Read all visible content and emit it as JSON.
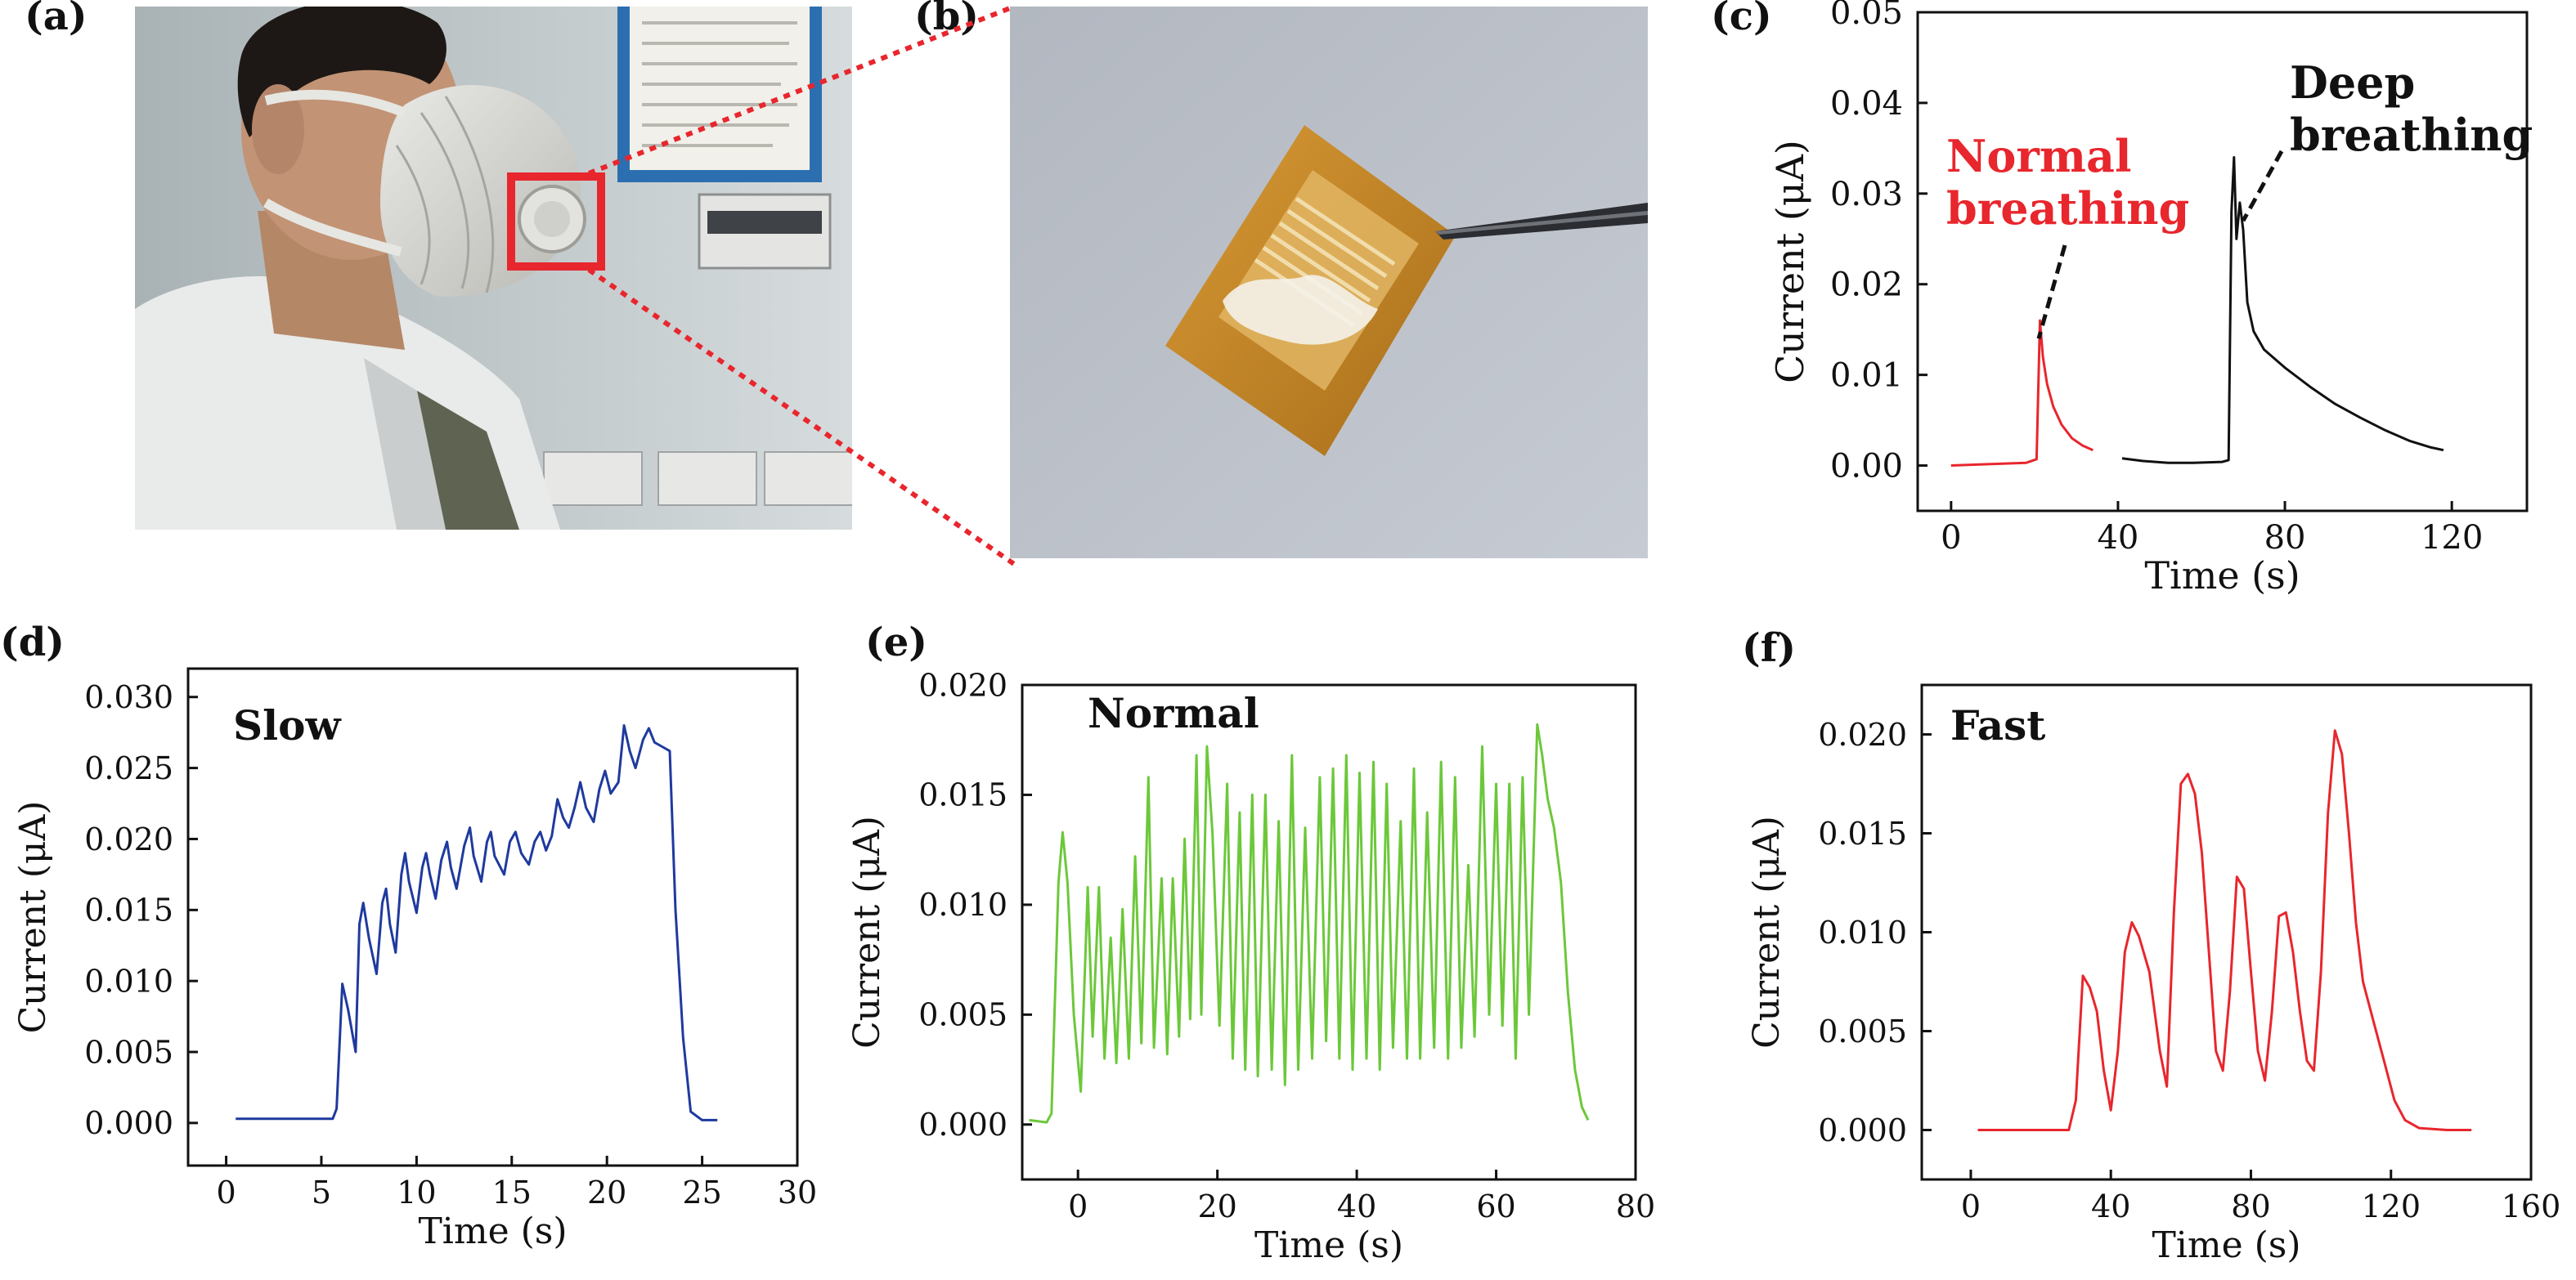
{
  "panel_labels": {
    "a": "(a)",
    "b": "(b)",
    "c": "(c)",
    "d": "(d)",
    "e": "(e)",
    "f": "(f)"
  },
  "photos": {
    "a": {
      "subject": "person wearing face mask with sensor on valve",
      "highlight_color": "#e8262d"
    },
    "b": {
      "subject": "sensor film held by tweezers",
      "film_color": "#c98a2a"
    }
  },
  "colors": {
    "red": "#e8262d",
    "black": "#111111",
    "blue": "#1f3a9e",
    "green": "#6cc83a",
    "callout": "#e8262d"
  },
  "chart_data": [
    {
      "id": "c",
      "type": "line",
      "xlabel": "Time (s)",
      "ylabel": "Current (μA)",
      "xlim": [
        -8,
        138
      ],
      "ylim": [
        -0.005,
        0.05
      ],
      "xticks": [
        0,
        40,
        80,
        120
      ],
      "yticks": [
        0.0,
        0.01,
        0.02,
        0.03,
        0.04,
        0.05
      ],
      "ytick_labels": [
        "0.00",
        "0.01",
        "0.02",
        "0.03",
        "0.04",
        "0.05"
      ],
      "annotations": [
        {
          "text": [
            "Normal",
            "breathing"
          ],
          "color": "#e8262d",
          "point": [
            21,
            0.014
          ]
        },
        {
          "text": [
            "Deep",
            "breathing"
          ],
          "color": "#111111",
          "point": [
            70,
            0.027
          ]
        }
      ],
      "series": [
        {
          "color": "#e8262d",
          "points": [
            [
              0,
              0.0
            ],
            [
              18,
              0.0003
            ],
            [
              20.5,
              0.0007
            ],
            [
              21.3,
              0.016
            ],
            [
              22,
              0.012
            ],
            [
              23,
              0.009
            ],
            [
              24.5,
              0.0065
            ],
            [
              26.5,
              0.0045
            ],
            [
              29,
              0.003
            ],
            [
              31.5,
              0.0022
            ],
            [
              34,
              0.0017
            ]
          ]
        },
        {
          "color": "#111111",
          "points": [
            [
              41,
              0.0008
            ],
            [
              46,
              0.0005
            ],
            [
              52,
              0.0003
            ],
            [
              58,
              0.0003
            ],
            [
              65,
              0.0004
            ],
            [
              66.5,
              0.0006
            ],
            [
              67.2,
              0.028
            ],
            [
              67.8,
              0.034
            ],
            [
              68.4,
              0.025
            ],
            [
              69.2,
              0.029
            ],
            [
              70,
              0.026
            ],
            [
              71,
              0.018
            ],
            [
              72.5,
              0.0148
            ],
            [
              75,
              0.0128
            ],
            [
              80,
              0.0108
            ],
            [
              86,
              0.0087
            ],
            [
              92,
              0.0068
            ],
            [
              98,
              0.0053
            ],
            [
              104,
              0.0039
            ],
            [
              110,
              0.0027
            ],
            [
              115,
              0.002
            ],
            [
              118,
              0.0017
            ]
          ]
        }
      ]
    },
    {
      "id": "d",
      "type": "line",
      "title": "Slow",
      "xlabel": "Time (s)",
      "ylabel": "Current (μA)",
      "xlim": [
        -2,
        30
      ],
      "ylim": [
        -0.003,
        0.032
      ],
      "xticks": [
        0,
        5,
        10,
        15,
        20,
        25,
        30
      ],
      "yticks": [
        0.0,
        0.005,
        0.01,
        0.015,
        0.02,
        0.025,
        0.03
      ],
      "ytick_labels": [
        "0.000",
        "0.005",
        "0.010",
        "0.015",
        "0.020",
        "0.025",
        "0.030"
      ],
      "series": [
        {
          "color": "#1f3a9e",
          "points": [
            [
              0.5,
              0.0003
            ],
            [
              5.6,
              0.0003
            ],
            [
              5.8,
              0.001
            ],
            [
              6.1,
              0.0098
            ],
            [
              6.4,
              0.008
            ],
            [
              6.8,
              0.005
            ],
            [
              7.0,
              0.014
            ],
            [
              7.2,
              0.0155
            ],
            [
              7.5,
              0.013
            ],
            [
              7.9,
              0.0105
            ],
            [
              8.2,
              0.0155
            ],
            [
              8.4,
              0.0165
            ],
            [
              8.6,
              0.014
            ],
            [
              8.9,
              0.012
            ],
            [
              9.2,
              0.0175
            ],
            [
              9.4,
              0.019
            ],
            [
              9.6,
              0.017
            ],
            [
              10.0,
              0.0148
            ],
            [
              10.3,
              0.018
            ],
            [
              10.5,
              0.019
            ],
            [
              10.7,
              0.0175
            ],
            [
              11.0,
              0.0158
            ],
            [
              11.3,
              0.0185
            ],
            [
              11.6,
              0.0198
            ],
            [
              11.8,
              0.018
            ],
            [
              12.1,
              0.0165
            ],
            [
              12.5,
              0.0195
            ],
            [
              12.8,
              0.0208
            ],
            [
              13.0,
              0.0188
            ],
            [
              13.4,
              0.017
            ],
            [
              13.7,
              0.0198
            ],
            [
              13.9,
              0.0205
            ],
            [
              14.1,
              0.0188
            ],
            [
              14.6,
              0.0175
            ],
            [
              14.9,
              0.0198
            ],
            [
              15.2,
              0.0205
            ],
            [
              15.5,
              0.019
            ],
            [
              15.9,
              0.0182
            ],
            [
              16.2,
              0.0198
            ],
            [
              16.5,
              0.0205
            ],
            [
              16.8,
              0.0192
            ],
            [
              17.1,
              0.0202
            ],
            [
              17.4,
              0.0228
            ],
            [
              17.7,
              0.0215
            ],
            [
              18.0,
              0.0208
            ],
            [
              18.3,
              0.0222
            ],
            [
              18.6,
              0.024
            ],
            [
              18.9,
              0.0222
            ],
            [
              19.3,
              0.0212
            ],
            [
              19.6,
              0.0235
            ],
            [
              19.9,
              0.0248
            ],
            [
              20.2,
              0.0232
            ],
            [
              20.6,
              0.024
            ],
            [
              20.9,
              0.028
            ],
            [
              21.2,
              0.0262
            ],
            [
              21.5,
              0.025
            ],
            [
              21.9,
              0.027
            ],
            [
              22.2,
              0.0278
            ],
            [
              22.5,
              0.0268
            ],
            [
              22.9,
              0.0265
            ],
            [
              23.3,
              0.0262
            ],
            [
              23.6,
              0.015
            ],
            [
              24.0,
              0.006
            ],
            [
              24.4,
              0.0008
            ],
            [
              25.0,
              0.0002
            ],
            [
              25.8,
              0.0002
            ]
          ]
        }
      ]
    },
    {
      "id": "e",
      "type": "line",
      "title": "Normal",
      "xlabel": "Time (s)",
      "ylabel": "Current (μA)",
      "xlim": [
        -8,
        80
      ],
      "ylim": [
        -0.0025,
        0.02
      ],
      "xticks": [
        0,
        20,
        40,
        60,
        80
      ],
      "yticks": [
        0.0,
        0.005,
        0.01,
        0.015,
        0.02
      ],
      "ytick_labels": [
        "0.000",
        "0.005",
        "0.010",
        "0.015",
        "0.020"
      ],
      "series": [
        {
          "color": "#6cc83a",
          "points": [
            [
              -7,
              0.0002
            ],
            [
              -4.5,
              0.0001
            ],
            [
              -3.8,
              0.0005
            ],
            [
              -2.8,
              0.011
            ],
            [
              -2.2,
              0.0133
            ],
            [
              -1.5,
              0.011
            ],
            [
              -0.6,
              0.005
            ],
            [
              0.4,
              0.0015
            ],
            [
              1.4,
              0.0108
            ],
            [
              2.1,
              0.004
            ],
            [
              3.0,
              0.0108
            ],
            [
              3.8,
              0.003
            ],
            [
              4.7,
              0.0085
            ],
            [
              5.5,
              0.0028
            ],
            [
              6.4,
              0.0098
            ],
            [
              7.3,
              0.003
            ],
            [
              8.2,
              0.0122
            ],
            [
              9.1,
              0.0037
            ],
            [
              10.1,
              0.0158
            ],
            [
              10.9,
              0.0035
            ],
            [
              12.0,
              0.0112
            ],
            [
              12.8,
              0.0032
            ],
            [
              13.6,
              0.0112
            ],
            [
              14.5,
              0.004
            ],
            [
              15.3,
              0.013
            ],
            [
              16.1,
              0.0048
            ],
            [
              17.0,
              0.0168
            ],
            [
              17.7,
              0.005
            ],
            [
              18.5,
              0.0172
            ],
            [
              19.3,
              0.0132
            ],
            [
              20.3,
              0.0045
            ],
            [
              21.4,
              0.0155
            ],
            [
              22.2,
              0.003
            ],
            [
              23.2,
              0.0142
            ],
            [
              24.0,
              0.0025
            ],
            [
              25.0,
              0.015
            ],
            [
              25.8,
              0.0022
            ],
            [
              26.9,
              0.015
            ],
            [
              27.8,
              0.0025
            ],
            [
              28.8,
              0.0138
            ],
            [
              29.7,
              0.0018
            ],
            [
              30.7,
              0.0168
            ],
            [
              31.6,
              0.0025
            ],
            [
              32.6,
              0.0135
            ],
            [
              33.6,
              0.003
            ],
            [
              34.7,
              0.0158
            ],
            [
              35.6,
              0.0038
            ],
            [
              36.6,
              0.0162
            ],
            [
              37.5,
              0.003
            ],
            [
              38.5,
              0.0168
            ],
            [
              39.4,
              0.0025
            ],
            [
              40.4,
              0.016
            ],
            [
              41.4,
              0.003
            ],
            [
              42.4,
              0.0165
            ],
            [
              43.3,
              0.0025
            ],
            [
              44.3,
              0.0155
            ],
            [
              45.2,
              0.0035
            ],
            [
              46.3,
              0.0138
            ],
            [
              47.2,
              0.003
            ],
            [
              48.2,
              0.0162
            ],
            [
              49.1,
              0.003
            ],
            [
              50.1,
              0.0142
            ],
            [
              51.1,
              0.0035
            ],
            [
              52.1,
              0.0165
            ],
            [
              53.1,
              0.003
            ],
            [
              54.1,
              0.0158
            ],
            [
              55.0,
              0.0035
            ],
            [
              56.0,
              0.0118
            ],
            [
              56.9,
              0.004
            ],
            [
              58.0,
              0.0172
            ],
            [
              59.0,
              0.005
            ],
            [
              60.0,
              0.0155
            ],
            [
              60.9,
              0.0045
            ],
            [
              61.9,
              0.0155
            ],
            [
              62.8,
              0.003
            ],
            [
              63.8,
              0.0158
            ],
            [
              64.7,
              0.005
            ],
            [
              65.9,
              0.0182
            ],
            [
              66.6,
              0.0168
            ],
            [
              67.4,
              0.0148
            ],
            [
              68.3,
              0.0135
            ],
            [
              69.3,
              0.011
            ],
            [
              70.3,
              0.006
            ],
            [
              71.3,
              0.0025
            ],
            [
              72.3,
              0.0008
            ],
            [
              73.2,
              0.0002
            ]
          ]
        }
      ]
    },
    {
      "id": "f",
      "type": "line",
      "title": "Fast",
      "xlabel": "Time (s)",
      "ylabel": "Current (μA)",
      "xlim": [
        -14,
        160
      ],
      "ylim": [
        -0.0025,
        0.0225
      ],
      "xticks": [
        0,
        40,
        80,
        120,
        160
      ],
      "yticks": [
        0.0,
        0.005,
        0.01,
        0.015,
        0.02
      ],
      "ytick_labels": [
        "0.000",
        "0.005",
        "0.010",
        "0.015",
        "0.020"
      ],
      "series": [
        {
          "color": "#e8262d",
          "points": [
            [
              2,
              0.0
            ],
            [
              28,
              0.0
            ],
            [
              30,
              0.0015
            ],
            [
              32,
              0.0078
            ],
            [
              34,
              0.0072
            ],
            [
              36,
              0.006
            ],
            [
              38,
              0.003
            ],
            [
              40,
              0.001
            ],
            [
              42,
              0.004
            ],
            [
              44,
              0.009
            ],
            [
              46,
              0.0105
            ],
            [
              48,
              0.0098
            ],
            [
              51,
              0.008
            ],
            [
              54,
              0.004
            ],
            [
              56,
              0.0022
            ],
            [
              58,
              0.011
            ],
            [
              60,
              0.0175
            ],
            [
              62,
              0.018
            ],
            [
              64,
              0.017
            ],
            [
              66,
              0.014
            ],
            [
              68,
              0.009
            ],
            [
              70,
              0.004
            ],
            [
              72,
              0.003
            ],
            [
              74,
              0.007
            ],
            [
              76,
              0.0128
            ],
            [
              78,
              0.0122
            ],
            [
              80,
              0.008
            ],
            [
              82,
              0.004
            ],
            [
              84,
              0.0025
            ],
            [
              86,
              0.006
            ],
            [
              88,
              0.0108
            ],
            [
              90,
              0.011
            ],
            [
              92,
              0.009
            ],
            [
              94,
              0.006
            ],
            [
              96,
              0.0035
            ],
            [
              98,
              0.003
            ],
            [
              100,
              0.008
            ],
            [
              102,
              0.016
            ],
            [
              104,
              0.0202
            ],
            [
              106,
              0.019
            ],
            [
              108,
              0.015
            ],
            [
              110,
              0.0105
            ],
            [
              112,
              0.0075
            ],
            [
              115,
              0.0055
            ],
            [
              118,
              0.0035
            ],
            [
              121,
              0.0015
            ],
            [
              124,
              0.0005
            ],
            [
              128,
              0.0001
            ],
            [
              136,
              0.0
            ],
            [
              143,
              0.0
            ]
          ]
        }
      ]
    }
  ]
}
